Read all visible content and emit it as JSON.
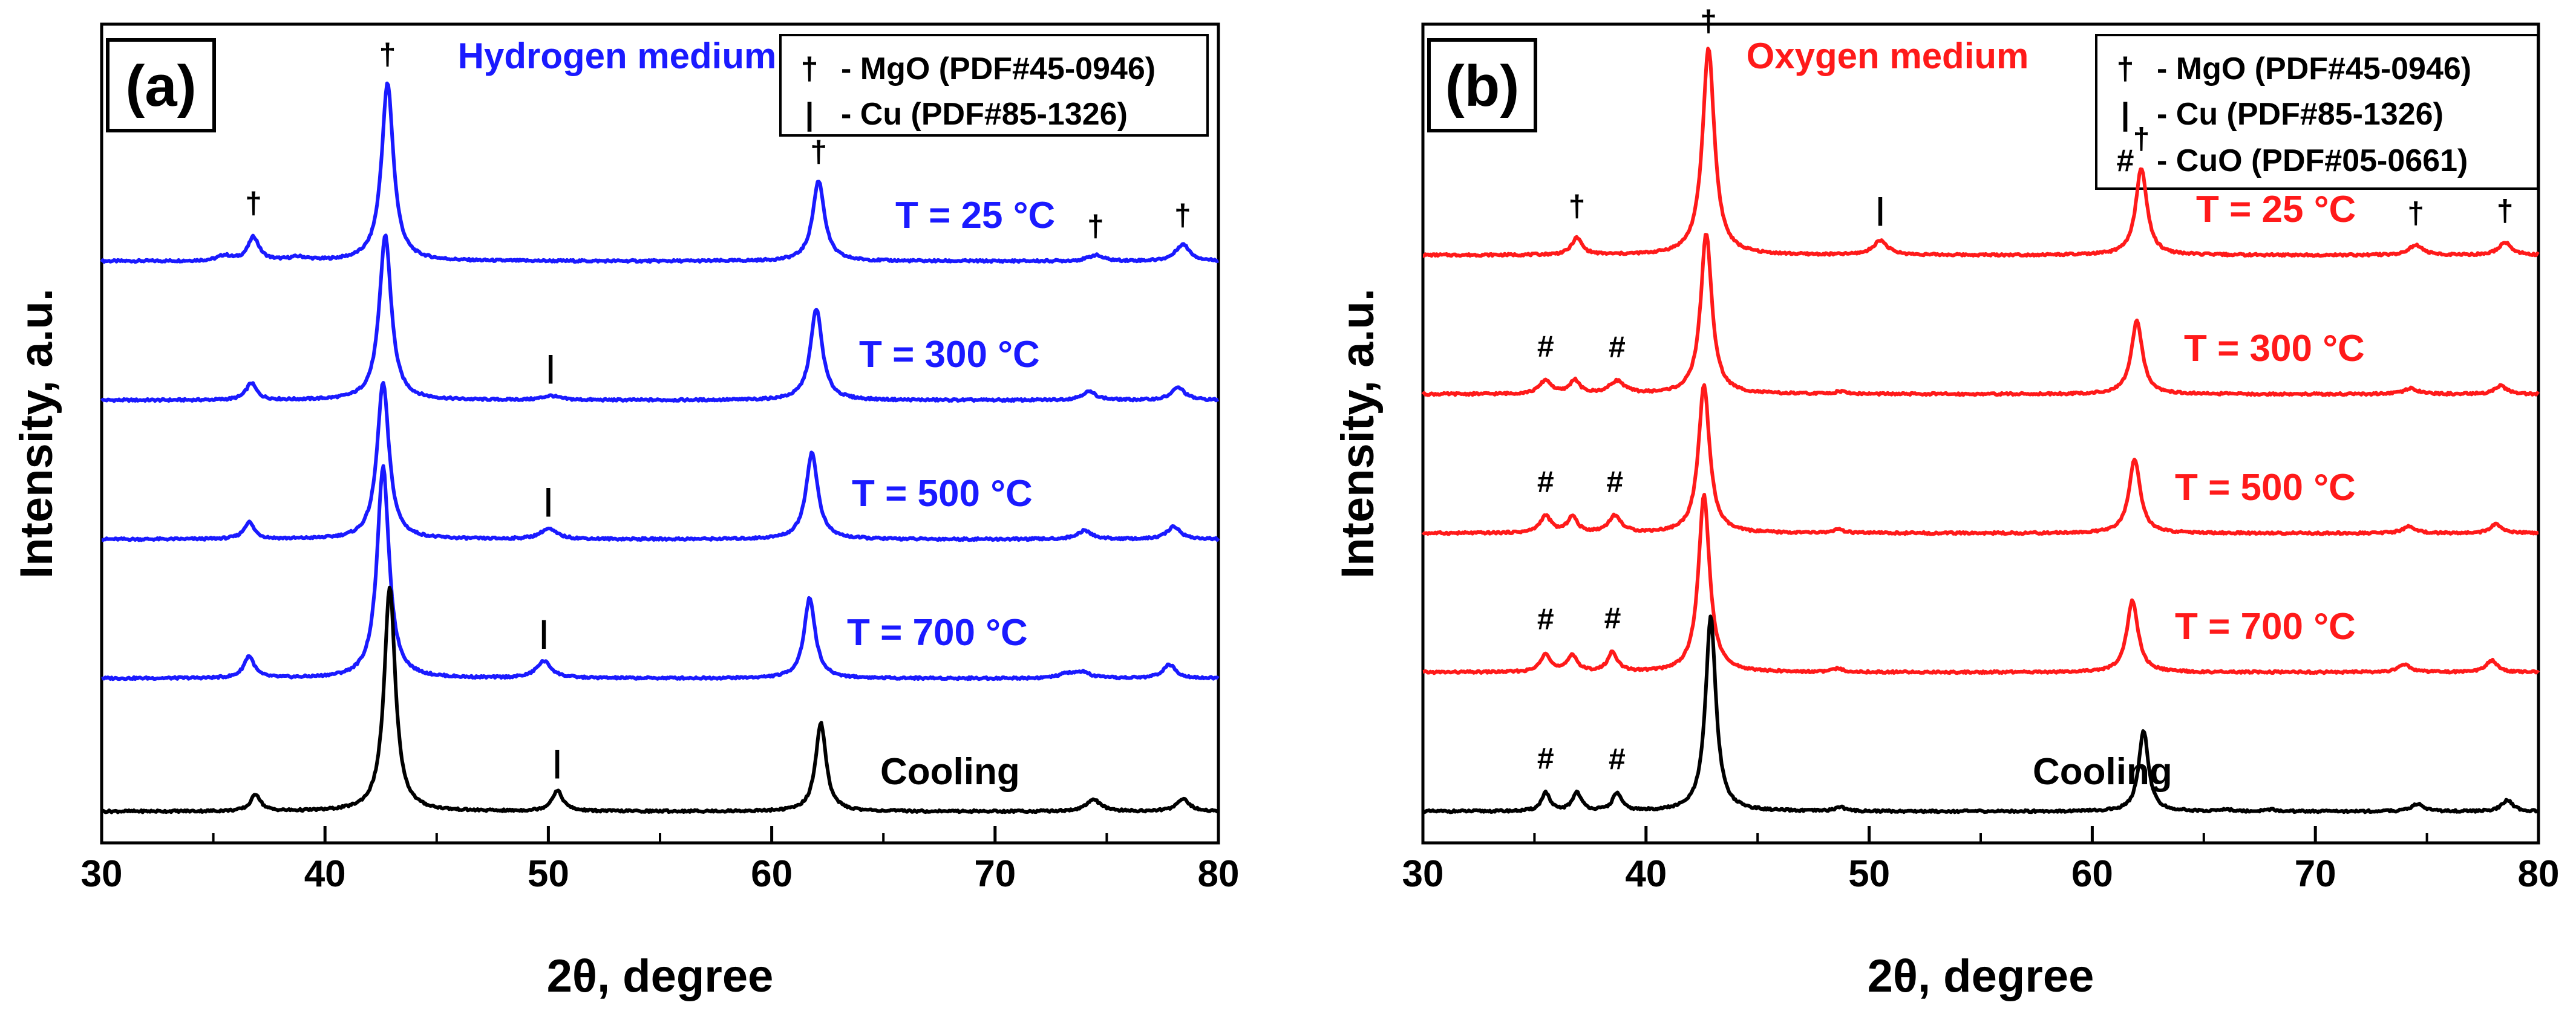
{
  "colors": {
    "hydrogen": "#1a1aff",
    "oxygen": "#ff1a1a",
    "cooling": "#000000",
    "axis": "#000000"
  },
  "chart_data": [
    {
      "type": "line",
      "panel_label": "(a)",
      "title": "Hydrogen medium",
      "xlabel": "2θ, degree",
      "ylabel": "Intensity, a.u.",
      "xlim": [
        30,
        80
      ],
      "x_ticks": [
        30,
        40,
        50,
        60,
        70,
        80
      ],
      "medium_color": "#1a1aff",
      "legend_position": "top-right",
      "legend": [
        {
          "symbol": "†",
          "text": "- MgO (PDF#45-0946)"
        },
        {
          "symbol": "|",
          "text": "- Cu (PDF#85-1326)"
        }
      ],
      "series": [
        {
          "name": "T = 25 °C",
          "offset": 4,
          "color": "#1a1aff",
          "peaks": [
            [
              35.5,
              0.06,
              0.35
            ],
            [
              36.8,
              0.28,
              0.3
            ],
            [
              38.8,
              0.04,
              0.5
            ],
            [
              42.8,
              2.1,
              0.32
            ],
            [
              62.1,
              0.95,
              0.32
            ],
            [
              74.5,
              0.07,
              0.4
            ],
            [
              78.4,
              0.2,
              0.38
            ]
          ]
        },
        {
          "name": "T = 300 °C",
          "offset": 3,
          "color": "#1a1aff",
          "peaks": [
            [
              36.7,
              0.2,
              0.28
            ],
            [
              42.7,
              1.95,
              0.32
            ],
            [
              50.1,
              0.05,
              0.45
            ],
            [
              62.0,
              1.08,
              0.32
            ],
            [
              74.2,
              0.1,
              0.4
            ],
            [
              78.2,
              0.15,
              0.36
            ]
          ]
        },
        {
          "name": "T = 500 °C",
          "offset": 2,
          "color": "#1a1aff",
          "peaks": [
            [
              36.6,
              0.2,
              0.28
            ],
            [
              42.6,
              1.85,
              0.32
            ],
            [
              50.0,
              0.12,
              0.45
            ],
            [
              61.8,
              1.02,
              0.32
            ],
            [
              74.0,
              0.1,
              0.4
            ],
            [
              78.0,
              0.15,
              0.36
            ]
          ]
        },
        {
          "name": "T = 700 °C",
          "offset": 1,
          "color": "#1a1aff",
          "peaks": [
            [
              36.6,
              0.26,
              0.28
            ],
            [
              42.6,
              2.5,
              0.32
            ],
            [
              49.8,
              0.2,
              0.4
            ],
            [
              61.7,
              0.95,
              0.3
            ],
            [
              73.2,
              0.05,
              0.4
            ],
            [
              73.9,
              0.07,
              0.4
            ],
            [
              77.8,
              0.16,
              0.36
            ]
          ]
        },
        {
          "name": "Cooling",
          "offset": 0,
          "color": "#000000",
          "peaks": [
            [
              36.9,
              0.2,
              0.26
            ],
            [
              42.9,
              2.65,
              0.3
            ],
            [
              50.4,
              0.24,
              0.3
            ],
            [
              62.2,
              1.05,
              0.28
            ],
            [
              74.4,
              0.14,
              0.38
            ],
            [
              78.4,
              0.15,
              0.34
            ]
          ]
        }
      ],
      "annotations": [
        {
          "symbol": "†",
          "x": 36.8,
          "series": 0,
          "lift": 0.2
        },
        {
          "symbol": "†",
          "x": 42.8,
          "series": 0,
          "lift": 0.15
        },
        {
          "symbol": "†",
          "x": 62.1,
          "series": 0,
          "lift": 0.15
        },
        {
          "symbol": "†",
          "x": 74.5,
          "series": 0,
          "lift": 0.15
        },
        {
          "symbol": "†",
          "x": 78.4,
          "series": 0,
          "lift": 0.15
        },
        {
          "symbol": "|",
          "x": 50.1,
          "series": 1,
          "lift": 0.15
        },
        {
          "symbol": "|",
          "x": 50.0,
          "series": 2,
          "lift": 0.15
        },
        {
          "symbol": "|",
          "x": 49.8,
          "series": 3,
          "lift": 0.15
        },
        {
          "symbol": "|",
          "x": 50.4,
          "series": 4,
          "lift": 0.15
        }
      ]
    },
    {
      "type": "line",
      "panel_label": "(b)",
      "title": "Oxygen medium",
      "xlabel": "2θ, degree",
      "ylabel": "Intensity, a.u.",
      "xlim": [
        30,
        80
      ],
      "x_ticks": [
        30,
        40,
        50,
        60,
        70,
        80
      ],
      "medium_color": "#ff1a1a",
      "legend_position": "top-right",
      "legend": [
        {
          "symbol": "†",
          "text": "- MgO (PDF#45-0946)"
        },
        {
          "symbol": "|",
          "text": "- Cu (PDF#85-1326)"
        },
        {
          "symbol": "#",
          "text": "- CuO (PDF#05-0661)"
        }
      ],
      "series": [
        {
          "name": "T = 25 °C",
          "offset": 4,
          "color": "#ff1a1a",
          "peaks": [
            [
              36.9,
              0.2,
              0.28
            ],
            [
              42.8,
              2.45,
              0.32
            ],
            [
              50.5,
              0.17,
              0.38
            ],
            [
              62.2,
              1.03,
              0.3
            ],
            [
              74.5,
              0.12,
              0.36
            ],
            [
              78.5,
              0.15,
              0.34
            ]
          ]
        },
        {
          "name": "T = 300 °C",
          "offset": 3,
          "color": "#ff1a1a",
          "peaks": [
            [
              35.5,
              0.16,
              0.32
            ],
            [
              36.8,
              0.16,
              0.26
            ],
            [
              38.7,
              0.15,
              0.4
            ],
            [
              42.7,
              1.9,
              0.3
            ],
            [
              48.7,
              0.03,
              0.3
            ],
            [
              62.0,
              0.87,
              0.3
            ],
            [
              74.3,
              0.07,
              0.36
            ],
            [
              78.3,
              0.1,
              0.32
            ]
          ]
        },
        {
          "name": "T = 500 °C",
          "offset": 2,
          "color": "#ff1a1a",
          "peaks": [
            [
              35.5,
              0.2,
              0.3
            ],
            [
              36.7,
              0.19,
              0.26
            ],
            [
              38.6,
              0.2,
              0.34
            ],
            [
              42.6,
              1.75,
              0.3
            ],
            [
              48.6,
              0.04,
              0.3
            ],
            [
              61.9,
              0.88,
              0.3
            ],
            [
              74.2,
              0.08,
              0.34
            ],
            [
              78.1,
              0.11,
              0.3
            ]
          ]
        },
        {
          "name": "T = 700 °C",
          "offset": 1,
          "color": "#ff1a1a",
          "peaks": [
            [
              35.5,
              0.22,
              0.26
            ],
            [
              36.7,
              0.2,
              0.26
            ],
            [
              38.5,
              0.23,
              0.26
            ],
            [
              42.6,
              2.1,
              0.3
            ],
            [
              48.6,
              0.04,
              0.3
            ],
            [
              61.8,
              0.85,
              0.3
            ],
            [
              74.0,
              0.09,
              0.34
            ],
            [
              77.9,
              0.14,
              0.3
            ]
          ]
        },
        {
          "name": "Cooling",
          "offset": 0,
          "color": "#000000",
          "peaks": [
            [
              35.5,
              0.22,
              0.22
            ],
            [
              36.9,
              0.22,
              0.24
            ],
            [
              38.7,
              0.21,
              0.24
            ],
            [
              42.9,
              2.3,
              0.28
            ],
            [
              48.7,
              0.05,
              0.26
            ],
            [
              62.3,
              0.96,
              0.26
            ],
            [
              66.0,
              0.02,
              0.3
            ],
            [
              68.0,
              0.02,
              0.3
            ],
            [
              74.6,
              0.09,
              0.32
            ],
            [
              78.6,
              0.13,
              0.3
            ]
          ]
        }
      ],
      "annotations": [
        {
          "symbol": "†",
          "x": 36.9,
          "series": 0,
          "lift": 0.18
        },
        {
          "symbol": "†",
          "x": 42.8,
          "series": 0,
          "lift": 0.12
        },
        {
          "symbol": "|",
          "x": 50.5,
          "series": 0,
          "lift": 0.18
        },
        {
          "symbol": "†",
          "x": 62.2,
          "series": 0,
          "lift": 0.15
        },
        {
          "symbol": "†",
          "x": 74.5,
          "series": 0,
          "lift": 0.18
        },
        {
          "symbol": "†",
          "x": 78.5,
          "series": 0,
          "lift": 0.18
        },
        {
          "symbol": "#",
          "x": 35.5,
          "series": 1,
          "lift": 0.2
        },
        {
          "symbol": "#",
          "x": 38.7,
          "series": 1,
          "lift": 0.2
        },
        {
          "symbol": "#",
          "x": 35.5,
          "series": 2,
          "lift": 0.2
        },
        {
          "symbol": "#",
          "x": 38.6,
          "series": 2,
          "lift": 0.2
        },
        {
          "symbol": "#",
          "x": 35.5,
          "series": 3,
          "lift": 0.2
        },
        {
          "symbol": "#",
          "x": 38.5,
          "series": 3,
          "lift": 0.2
        },
        {
          "symbol": "#",
          "x": 35.5,
          "series": 4,
          "lift": 0.2
        },
        {
          "symbol": "#",
          "x": 38.7,
          "series": 4,
          "lift": 0.2
        }
      ]
    }
  ]
}
